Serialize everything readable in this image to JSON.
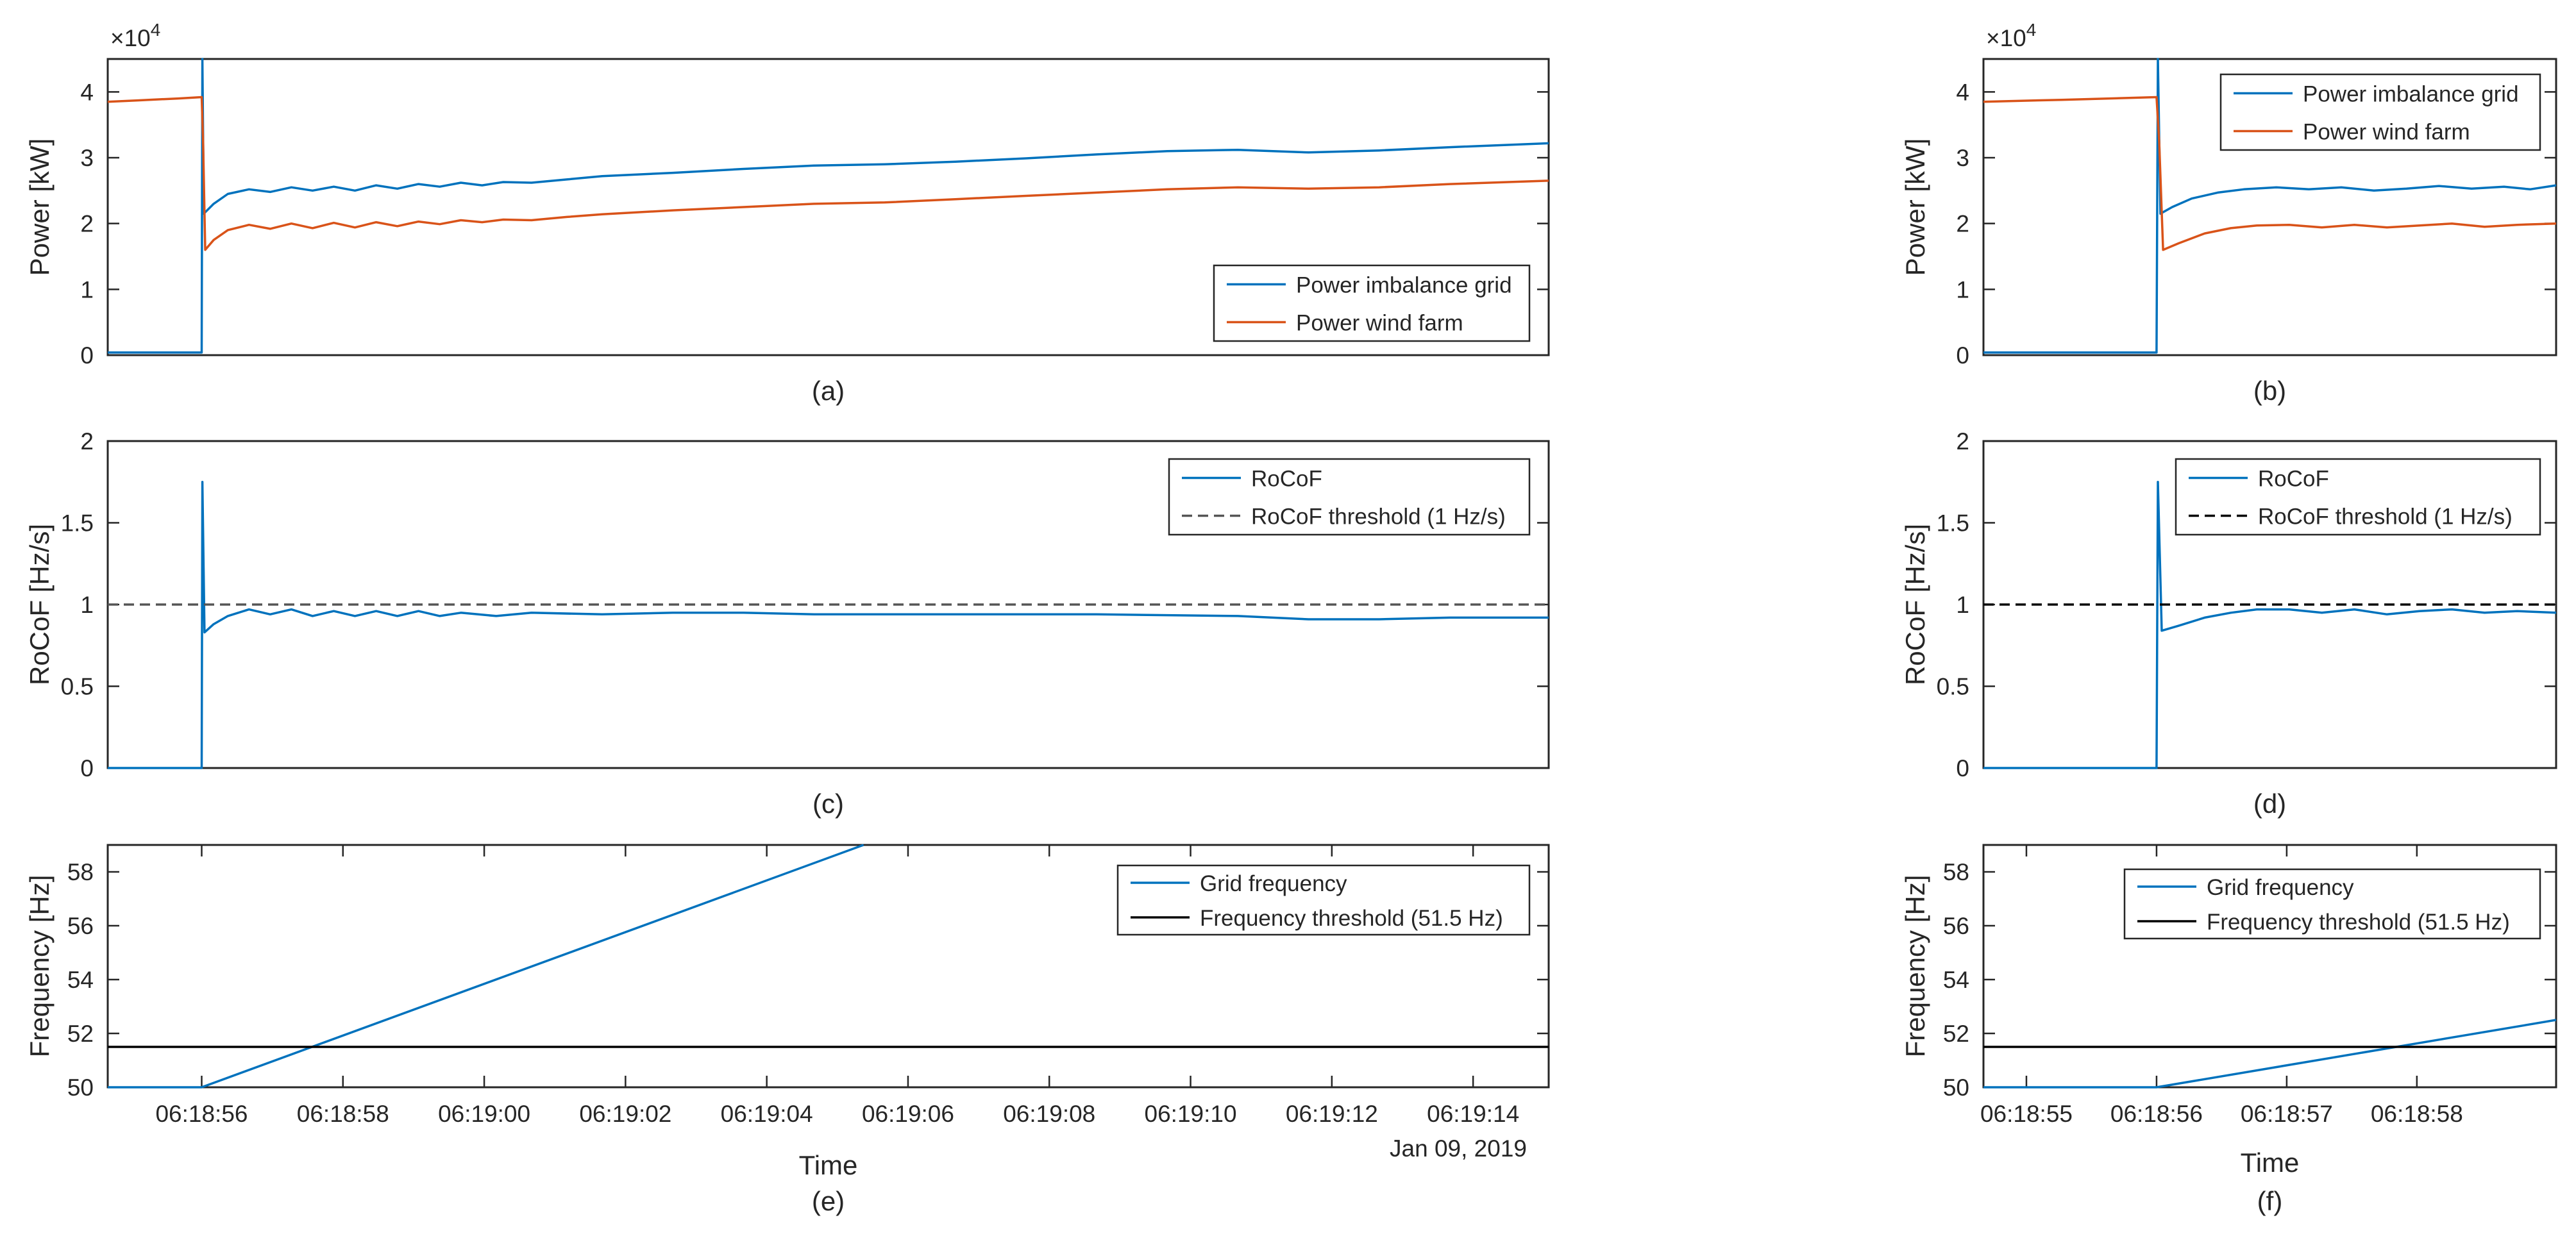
{
  "colors": {
    "blue": "#0072BD",
    "orange": "#D95319",
    "black": "#000000",
    "axis": "#262626"
  },
  "chart_data": [
    {
      "id": "a",
      "type": "line",
      "caption": "(a)",
      "ylabel": "Power [kW]",
      "exponent": "×10",
      "exponent_power": "4",
      "xlim": [
        0,
        20.4
      ],
      "ylim": [
        0,
        4.5
      ],
      "yticks": [
        0,
        1,
        2,
        3,
        4
      ],
      "ytick_labels": [
        "0",
        "1",
        "2",
        "3",
        "4"
      ],
      "show_xticks": false,
      "legend_position": "bottom-right",
      "series": [
        {
          "name": "Power imbalance grid",
          "color": "#0072BD",
          "dashed": false,
          "points": [
            [
              0,
              0.04
            ],
            [
              1.33,
              0.04
            ],
            [
              1.34,
              4.5
            ],
            [
              1.36,
              2.15
            ],
            [
              1.5,
              2.3
            ],
            [
              1.7,
              2.45
            ],
            [
              2.0,
              2.52
            ],
            [
              2.3,
              2.48
            ],
            [
              2.6,
              2.55
            ],
            [
              2.9,
              2.5
            ],
            [
              3.2,
              2.56
            ],
            [
              3.5,
              2.5
            ],
            [
              3.8,
              2.58
            ],
            [
              4.1,
              2.53
            ],
            [
              4.4,
              2.6
            ],
            [
              4.7,
              2.56
            ],
            [
              5.0,
              2.62
            ],
            [
              5.3,
              2.58
            ],
            [
              5.6,
              2.63
            ],
            [
              6.0,
              2.62
            ],
            [
              6.5,
              2.67
            ],
            [
              7,
              2.72
            ],
            [
              8,
              2.77
            ],
            [
              9,
              2.83
            ],
            [
              10,
              2.88
            ],
            [
              11,
              2.9
            ],
            [
              12,
              2.94
            ],
            [
              13,
              2.99
            ],
            [
              14,
              3.05
            ],
            [
              15,
              3.1
            ],
            [
              16,
              3.12
            ],
            [
              17,
              3.08
            ],
            [
              18,
              3.11
            ],
            [
              19,
              3.16
            ],
            [
              20.4,
              3.22
            ]
          ]
        },
        {
          "name": "Power wind farm",
          "color": "#D95319",
          "dashed": false,
          "points": [
            [
              0,
              3.85
            ],
            [
              0.4,
              3.87
            ],
            [
              1.0,
              3.9
            ],
            [
              1.33,
              3.92
            ],
            [
              1.35,
              3.25
            ],
            [
              1.38,
              1.6
            ],
            [
              1.5,
              1.75
            ],
            [
              1.7,
              1.9
            ],
            [
              2.0,
              1.98
            ],
            [
              2.3,
              1.92
            ],
            [
              2.6,
              2.0
            ],
            [
              2.9,
              1.93
            ],
            [
              3.2,
              2.01
            ],
            [
              3.5,
              1.94
            ],
            [
              3.8,
              2.02
            ],
            [
              4.1,
              1.96
            ],
            [
              4.4,
              2.03
            ],
            [
              4.7,
              1.99
            ],
            [
              5.0,
              2.05
            ],
            [
              5.3,
              2.02
            ],
            [
              5.6,
              2.06
            ],
            [
              6.0,
              2.05
            ],
            [
              6.5,
              2.1
            ],
            [
              7,
              2.14
            ],
            [
              8,
              2.2
            ],
            [
              9,
              2.25
            ],
            [
              10,
              2.3
            ],
            [
              11,
              2.32
            ],
            [
              12,
              2.37
            ],
            [
              13,
              2.42
            ],
            [
              14,
              2.47
            ],
            [
              15,
              2.52
            ],
            [
              16,
              2.55
            ],
            [
              17,
              2.53
            ],
            [
              18,
              2.55
            ],
            [
              19,
              2.6
            ],
            [
              20.4,
              2.65
            ]
          ]
        }
      ]
    },
    {
      "id": "b",
      "type": "line",
      "caption": "(b)",
      "ylabel": "Power [kW]",
      "exponent": "×10",
      "exponent_power": "4",
      "xlim": [
        0,
        4.4
      ],
      "ylim": [
        0,
        4.5
      ],
      "yticks": [
        0,
        1,
        2,
        3,
        4
      ],
      "ytick_labels": [
        "0",
        "1",
        "2",
        "3",
        "4"
      ],
      "show_xticks": false,
      "legend_position": "top-right",
      "series": [
        {
          "name": "Power imbalance grid",
          "color": "#0072BD",
          "dashed": false,
          "points": [
            [
              0,
              0.04
            ],
            [
              1.33,
              0.04
            ],
            [
              1.34,
              4.5
            ],
            [
              1.36,
              2.15
            ],
            [
              1.45,
              2.25
            ],
            [
              1.6,
              2.38
            ],
            [
              1.8,
              2.47
            ],
            [
              2.0,
              2.52
            ],
            [
              2.25,
              2.55
            ],
            [
              2.5,
              2.52
            ],
            [
              2.75,
              2.55
            ],
            [
              3.0,
              2.5
            ],
            [
              3.25,
              2.53
            ],
            [
              3.5,
              2.57
            ],
            [
              3.75,
              2.53
            ],
            [
              4.0,
              2.56
            ],
            [
              4.2,
              2.52
            ],
            [
              4.4,
              2.58
            ]
          ]
        },
        {
          "name": "Power wind farm",
          "color": "#D95319",
          "dashed": false,
          "points": [
            [
              0,
              3.85
            ],
            [
              0.6,
              3.88
            ],
            [
              1.33,
              3.92
            ],
            [
              1.35,
              3.25
            ],
            [
              1.38,
              1.6
            ],
            [
              1.5,
              1.7
            ],
            [
              1.7,
              1.85
            ],
            [
              1.9,
              1.93
            ],
            [
              2.1,
              1.97
            ],
            [
              2.35,
              1.98
            ],
            [
              2.6,
              1.94
            ],
            [
              2.85,
              1.98
            ],
            [
              3.1,
              1.94
            ],
            [
              3.35,
              1.97
            ],
            [
              3.6,
              2.0
            ],
            [
              3.85,
              1.95
            ],
            [
              4.1,
              1.98
            ],
            [
              4.4,
              2.0
            ]
          ]
        }
      ]
    },
    {
      "id": "c",
      "type": "line",
      "caption": "(c)",
      "ylabel": "RoCoF [Hz/s]",
      "xlim": [
        0,
        20.4
      ],
      "ylim": [
        0,
        2
      ],
      "yticks": [
        0,
        0.5,
        1,
        1.5,
        2
      ],
      "ytick_labels": [
        "0",
        "0.5",
        "1",
        "1.5",
        "2"
      ],
      "show_xticks": false,
      "legend_position": "top-right",
      "series": [
        {
          "name": "RoCoF",
          "color": "#0072BD",
          "dashed": false,
          "points": [
            [
              0,
              0
            ],
            [
              1.33,
              0
            ],
            [
              1.34,
              1.75
            ],
            [
              1.37,
              0.83
            ],
            [
              1.5,
              0.88
            ],
            [
              1.7,
              0.93
            ],
            [
              2.0,
              0.97
            ],
            [
              2.3,
              0.94
            ],
            [
              2.6,
              0.97
            ],
            [
              2.9,
              0.93
            ],
            [
              3.2,
              0.96
            ],
            [
              3.5,
              0.93
            ],
            [
              3.8,
              0.96
            ],
            [
              4.1,
              0.93
            ],
            [
              4.4,
              0.96
            ],
            [
              4.7,
              0.93
            ],
            [
              5.0,
              0.95
            ],
            [
              5.5,
              0.93
            ],
            [
              6,
              0.95
            ],
            [
              7,
              0.94
            ],
            [
              8,
              0.95
            ],
            [
              9,
              0.95
            ],
            [
              10,
              0.94
            ],
            [
              12,
              0.94
            ],
            [
              14,
              0.94
            ],
            [
              16,
              0.93
            ],
            [
              17,
              0.91
            ],
            [
              18,
              0.91
            ],
            [
              19,
              0.92
            ],
            [
              20.4,
              0.92
            ]
          ]
        },
        {
          "name": "RoCoF threshold (1 Hz/s)",
          "color": "#555555",
          "dashed": true,
          "points": [
            [
              0,
              1
            ],
            [
              20.4,
              1
            ]
          ]
        }
      ]
    },
    {
      "id": "d",
      "type": "line",
      "caption": "(d)",
      "ylabel": "RoCoF [Hz/s]",
      "xlim": [
        0,
        4.4
      ],
      "ylim": [
        0,
        2
      ],
      "yticks": [
        0,
        0.5,
        1,
        1.5,
        2
      ],
      "ytick_labels": [
        "0",
        "0.5",
        "1",
        "1.5",
        "2"
      ],
      "show_xticks": false,
      "legend_position": "top-right",
      "series": [
        {
          "name": "RoCoF",
          "color": "#0072BD",
          "dashed": false,
          "points": [
            [
              0,
              0
            ],
            [
              1.33,
              0
            ],
            [
              1.34,
              1.75
            ],
            [
              1.37,
              0.84
            ],
            [
              1.5,
              0.87
            ],
            [
              1.7,
              0.92
            ],
            [
              1.9,
              0.95
            ],
            [
              2.1,
              0.97
            ],
            [
              2.35,
              0.97
            ],
            [
              2.6,
              0.95
            ],
            [
              2.85,
              0.97
            ],
            [
              3.1,
              0.94
            ],
            [
              3.35,
              0.96
            ],
            [
              3.6,
              0.97
            ],
            [
              3.85,
              0.95
            ],
            [
              4.1,
              0.96
            ],
            [
              4.4,
              0.95
            ]
          ]
        },
        {
          "name": "RoCoF threshold (1 Hz/s)",
          "color": "#000000",
          "dashed": true,
          "points": [
            [
              0,
              1
            ],
            [
              4.4,
              1
            ]
          ]
        }
      ]
    },
    {
      "id": "e",
      "type": "line",
      "caption": "(e)",
      "ylabel": "Frequency [Hz]",
      "xlabel": "Time",
      "date_label": "Jan 09, 2019",
      "xlim": [
        0,
        20.4
      ],
      "ylim": [
        50,
        59
      ],
      "yticks": [
        50,
        52,
        54,
        56,
        58
      ],
      "ytick_labels": [
        "50",
        "52",
        "54",
        "56",
        "58"
      ],
      "show_xticks": true,
      "xticks": [
        1.33,
        3.33,
        5.33,
        7.33,
        9.33,
        11.33,
        13.33,
        15.33,
        17.33,
        19.33
      ],
      "xtick_labels": [
        "06:18:56",
        "06:18:58",
        "06:19:00",
        "06:19:02",
        "06:19:04",
        "06:19:06",
        "06:19:08",
        "06:19:10",
        "06:19:12",
        "06:19:14"
      ],
      "legend_position": "top-right",
      "series": [
        {
          "name": "Grid frequency",
          "color": "#0072BD",
          "dashed": false,
          "points": [
            [
              0,
              50
            ],
            [
              1.33,
              50
            ],
            [
              10.7,
              59
            ]
          ]
        },
        {
          "name": "Frequency threshold (51.5 Hz)",
          "color": "#000000",
          "dashed": false,
          "points": [
            [
              0,
              51.5
            ],
            [
              20.4,
              51.5
            ]
          ]
        }
      ]
    },
    {
      "id": "f",
      "type": "line",
      "caption": "(f)",
      "ylabel": "Frequency [Hz]",
      "xlabel": "Time",
      "xlim": [
        0,
        4.4
      ],
      "ylim": [
        50,
        59
      ],
      "yticks": [
        50,
        52,
        54,
        56,
        58
      ],
      "ytick_labels": [
        "50",
        "52",
        "54",
        "56",
        "58"
      ],
      "show_xticks": true,
      "xticks": [
        0.33,
        1.33,
        2.33,
        3.33
      ],
      "xtick_labels": [
        "06:18:55",
        "06:18:56",
        "06:18:57",
        "06:18:58"
      ],
      "legend_position": "top-right",
      "series": [
        {
          "name": "Grid frequency",
          "color": "#0072BD",
          "dashed": false,
          "points": [
            [
              0,
              50
            ],
            [
              1.33,
              50
            ],
            [
              4.4,
              52.5
            ]
          ]
        },
        {
          "name": "Frequency threshold (51.5 Hz)",
          "color": "#000000",
          "dashed": false,
          "points": [
            [
              0,
              51.5
            ],
            [
              4.4,
              51.5
            ]
          ]
        }
      ]
    }
  ]
}
